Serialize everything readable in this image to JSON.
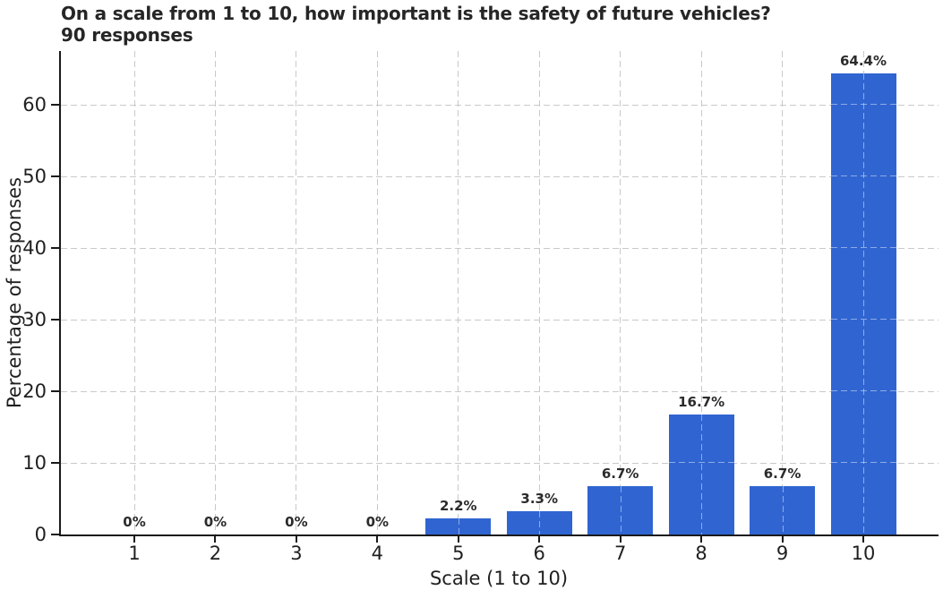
{
  "title": "On a scale from 1 to 10, how important is the safety of future vehicles?",
  "subtitle": "90 responses",
  "xlabel": "Scale (1 to 10)",
  "ylabel": "Percentage of responses",
  "colors": {
    "bar": "#3065d1",
    "grid": "#c9c9c9",
    "axis": "#1a1a1a",
    "text": "#1f1f1f"
  },
  "chart_data": {
    "type": "bar",
    "title": "On a scale from 1 to 10, how important is the safety of future vehicles?",
    "subtitle": "90 responses",
    "categories": [
      "1",
      "2",
      "3",
      "4",
      "5",
      "6",
      "7",
      "8",
      "9",
      "10"
    ],
    "values": [
      0,
      0,
      0,
      0,
      2.2,
      3.3,
      6.7,
      16.7,
      6.7,
      64.4
    ],
    "bar_labels": [
      "0%",
      "0%",
      "0%",
      "0%",
      "2.2%",
      "3.3%",
      "6.7%",
      "16.7%",
      "6.7%",
      "64.4%"
    ],
    "xlabel": "Scale (1 to 10)",
    "ylabel": "Percentage of responses",
    "ylim": [
      0,
      67.5
    ],
    "yticks": [
      0,
      10,
      20,
      30,
      40,
      50,
      60
    ],
    "grid": "dashed both axes",
    "legend": "none",
    "bar_color": "#3065d1"
  }
}
